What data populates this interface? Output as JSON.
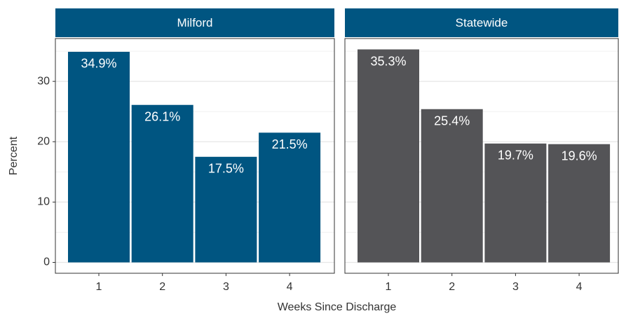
{
  "chart_data": [
    {
      "type": "bar",
      "title": "Milford",
      "ylabel": "Percent",
      "xlabel": "Weeks Since Discharge",
      "categories": [
        1,
        2,
        3,
        4
      ],
      "values": [
        34.9,
        26.1,
        17.5,
        21.5
      ],
      "value_labels": [
        "34.9%",
        "26.1%",
        "17.5%",
        "21.5%"
      ],
      "color": "#005581",
      "ylim": [
        -1.8,
        37.1
      ],
      "yticks": [
        0,
        10,
        20,
        30
      ],
      "minor_yticks": [
        5,
        15,
        25,
        35
      ],
      "grid": true
    },
    {
      "type": "bar",
      "title": "Statewide",
      "categories": [
        1,
        2,
        3,
        4
      ],
      "values": [
        35.3,
        25.4,
        19.7,
        19.6
      ],
      "value_labels": [
        "35.3%",
        "25.4%",
        "19.7%",
        "19.6%"
      ],
      "color": "#545457",
      "ylim": [
        -1.8,
        37.1
      ],
      "yticks": [
        0,
        10,
        20,
        30
      ],
      "minor_yticks": [
        5,
        15,
        25,
        35
      ],
      "grid": true
    }
  ]
}
